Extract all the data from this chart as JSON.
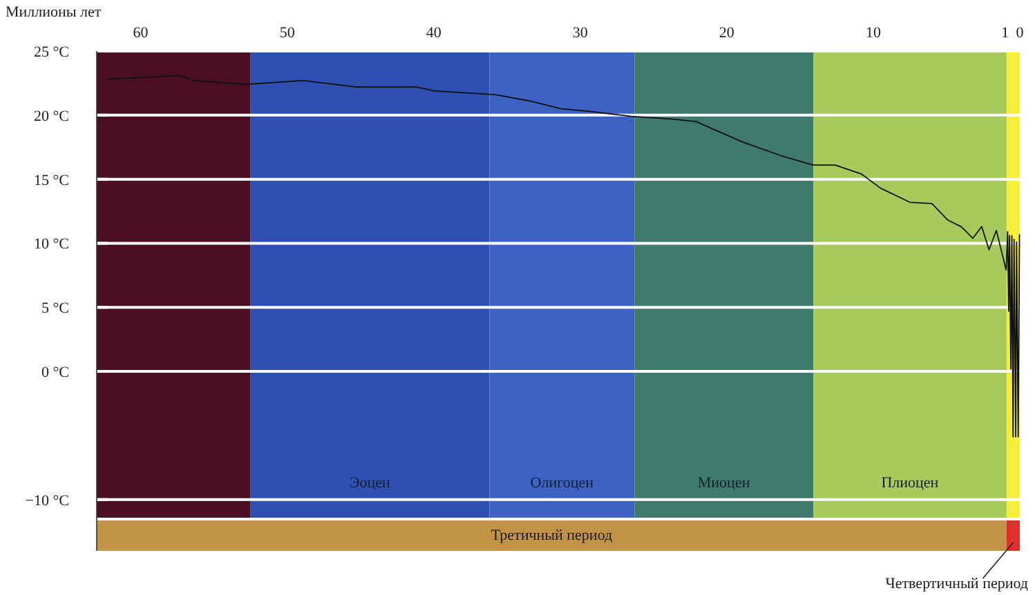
{
  "chart_data": {
    "type": "line",
    "xlabel": "Миллионы лет",
    "xlim": [
      63,
      0
    ],
    "xticks": [
      60,
      50,
      40,
      30,
      20,
      10,
      1,
      0
    ],
    "ylim": [
      -14,
      25
    ],
    "yticks": [
      {
        "value": 25,
        "label": "25 °C"
      },
      {
        "value": 20,
        "label": "20 °C"
      },
      {
        "value": 15,
        "label": "15 °C"
      },
      {
        "value": 10,
        "label": "10 °C"
      },
      {
        "value": 5,
        "label": "5 °C"
      },
      {
        "value": 0,
        "label": "0 °C"
      },
      {
        "value": -10,
        "label": "−10 °C"
      }
    ],
    "grid": "y",
    "legend": false,
    "marker": "none",
    "line_style": "solid",
    "series": [
      {
        "color": "#111111",
        "x": [
          62.3,
          57.3,
          56.4,
          52.8,
          48.9,
          45.3,
          41.2,
          40,
          35.8,
          33.4,
          31.3,
          29.4,
          26.5,
          23.8,
          22.1,
          18.9,
          16.2,
          14.1,
          12.6,
          10.8,
          9.5,
          7.5,
          6.0,
          4.9,
          4.0,
          3.2,
          2.6,
          2.1,
          1.6,
          0.93,
          0.83,
          0.76,
          0.7,
          0.61,
          0.54,
          0.46,
          0.39,
          0.28,
          0.22,
          0.11,
          0.02
        ],
        "values": [
          22.8,
          23.1,
          22.7,
          22.4,
          22.7,
          22.2,
          22.2,
          21.9,
          21.6,
          21.1,
          20.5,
          20.3,
          19.9,
          19.7,
          19.5,
          17.9,
          16.8,
          16.1,
          16.1,
          15.4,
          14.3,
          13.2,
          13.1,
          11.8,
          11.3,
          10.4,
          11.3,
          9.5,
          11.0,
          7.9,
          10.9,
          4.7,
          10.6,
          0.2,
          10.6,
          -5.1,
          10.3,
          -5.1,
          10.1,
          -5.1,
          10.7
        ]
      }
    ],
    "bands": [
      {
        "axis": "x",
        "from": 63,
        "to": 52.5,
        "color": "#4a0f22"
      },
      {
        "axis": "x",
        "from": 52.5,
        "to": 36.2,
        "label": "Эоцен",
        "color": "#2f4fb3"
      },
      {
        "axis": "x",
        "from": 36.2,
        "to": 26.3,
        "label": "Олигоцен",
        "color": "#3d62c4"
      },
      {
        "axis": "x",
        "from": 26.3,
        "to": 14.1,
        "label": "Миоцен",
        "color": "#3f7a6c"
      },
      {
        "axis": "x",
        "from": 14.1,
        "to": 0.9,
        "label": "Плиоцен",
        "color": "#a6cb5c"
      },
      {
        "axis": "x",
        "from": 0.9,
        "to": 0,
        "color": "#f6ee3a"
      },
      {
        "axis": "x",
        "from": 63,
        "to": 0.9,
        "label": "Третичный период",
        "color": "#c29246"
      },
      {
        "axis": "x",
        "from": 0.9,
        "to": 0,
        "label": "Четвертичный период",
        "color": "#e0302e"
      }
    ]
  }
}
